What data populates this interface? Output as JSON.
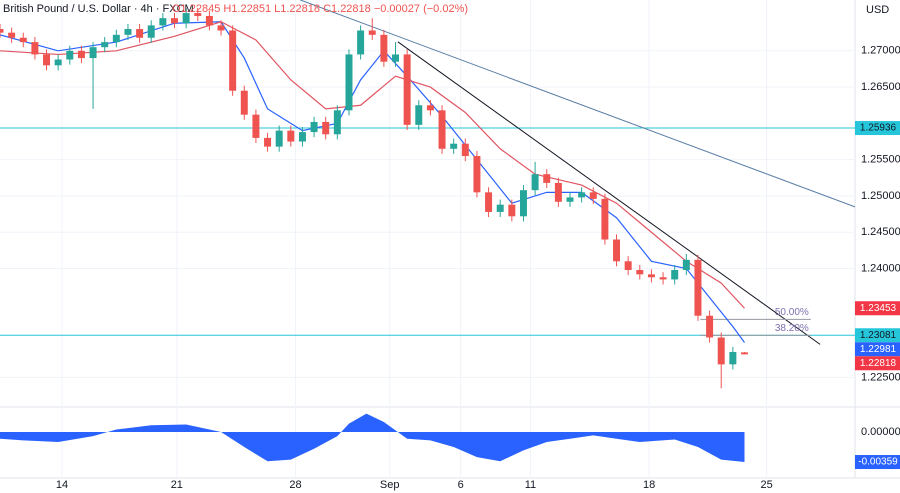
{
  "chart_data": {
    "type": "candlestick",
    "title": "British Pound / U.S. Dollar · 4h · FXCM",
    "header_stats": "O1.22845 H1.22851 L1.22818 C1.22818 −0.00027 (−0.02%)",
    "currency": "USD",
    "up_color": "#26a69a",
    "down_color": "#ef5350",
    "xlim": [
      0,
      73.5
    ],
    "xticks": [
      {
        "value": 5.33,
        "label": "14"
      },
      {
        "value": 15.2,
        "label": "21"
      },
      {
        "value": 25.4,
        "label": "28"
      },
      {
        "value": 33.5,
        "label": "Sep"
      },
      {
        "value": 39.6,
        "label": "6"
      },
      {
        "value": 45.6,
        "label": "11"
      },
      {
        "value": 55.8,
        "label": "18"
      },
      {
        "value": 65.9,
        "label": "25"
      }
    ],
    "ylim": [
      1.2212,
      1.277
    ],
    "yticks": [
      {
        "value": 1.225,
        "label": "1.22500"
      },
      {
        "value": 1.24,
        "label": "1.24000"
      },
      {
        "value": 1.245,
        "label": "1.24500"
      },
      {
        "value": 1.25,
        "label": "1.25000"
      },
      {
        "value": 1.255,
        "label": "1.25500"
      },
      {
        "value": 1.265,
        "label": "1.26500"
      },
      {
        "value": 1.27,
        "label": "1.27000"
      }
    ],
    "x": [
      0,
      1,
      2,
      3,
      4,
      5,
      6,
      7,
      8,
      9,
      10,
      11,
      12,
      13,
      14,
      15,
      16,
      17,
      18,
      19,
      20,
      21,
      22,
      23,
      24,
      25,
      26,
      27,
      28,
      29,
      30,
      31,
      32,
      33,
      34,
      35,
      36,
      37,
      38,
      39,
      40,
      41,
      42,
      43,
      44,
      45,
      46,
      47,
      48,
      49,
      50,
      51,
      52,
      53,
      54,
      55,
      56,
      57,
      58,
      59,
      60,
      61,
      62,
      63,
      64
    ],
    "open": [
      1.273,
      1.2725,
      1.2718,
      1.2712,
      1.2695,
      1.268,
      1.2688,
      1.27,
      1.269,
      1.2705,
      1.2712,
      1.2722,
      1.273,
      1.2718,
      1.2735,
      1.2745,
      1.2738,
      1.2752,
      1.2748,
      1.2735,
      1.2728,
      1.2645,
      1.2612,
      1.258,
      1.2568,
      1.259,
      1.2575,
      1.2588,
      1.2602,
      1.2585,
      1.2618,
      1.2695,
      1.2728,
      1.2722,
      1.2685,
      1.2695,
      1.2598,
      1.2625,
      1.2618,
      1.2565,
      1.2572,
      1.2555,
      1.2505,
      1.2478,
      1.2488,
      1.2472,
      1.2508,
      1.253,
      1.2518,
      1.2492,
      1.2498,
      1.2505,
      1.2496,
      1.244,
      1.241,
      1.2398,
      1.2392,
      1.2388,
      1.2385,
      1.2398,
      1.2412,
      1.2335,
      1.2305,
      1.2268,
      1.22845
    ],
    "high": [
      1.2737,
      1.2732,
      1.2725,
      1.2719,
      1.2702,
      1.2695,
      1.2707,
      1.2707,
      1.2712,
      1.2719,
      1.2729,
      1.2737,
      1.2737,
      1.2742,
      1.2752,
      1.2752,
      1.2759,
      1.2759,
      1.2755,
      1.2742,
      1.2735,
      1.2652,
      1.2619,
      1.2587,
      1.2597,
      1.2597,
      1.2595,
      1.2609,
      1.2609,
      1.2625,
      1.2702,
      1.2735,
      1.2745,
      1.2729,
      1.2712,
      1.2702,
      1.2632,
      1.2632,
      1.2625,
      1.2579,
      1.2579,
      1.2562,
      1.2512,
      1.2495,
      1.2495,
      1.2515,
      1.2547,
      1.2537,
      1.2525,
      1.2505,
      1.2512,
      1.2512,
      1.2503,
      1.2447,
      1.2417,
      1.2405,
      1.2399,
      1.2395,
      1.2405,
      1.242,
      1.2419,
      1.2342,
      1.2312,
      1.2292,
      1.22851
    ],
    "low": [
      1.2718,
      1.2711,
      1.2705,
      1.2688,
      1.2673,
      1.2673,
      1.2681,
      1.2683,
      1.262,
      1.2698,
      1.2705,
      1.2715,
      1.2711,
      1.2711,
      1.2728,
      1.2731,
      1.2731,
      1.2741,
      1.2728,
      1.2721,
      1.2638,
      1.2605,
      1.2573,
      1.2561,
      1.2561,
      1.2568,
      1.2568,
      1.2581,
      1.2578,
      1.2578,
      1.2611,
      1.2688,
      1.2715,
      1.2678,
      1.2678,
      1.2591,
      1.2591,
      1.2611,
      1.2558,
      1.2558,
      1.2548,
      1.2498,
      1.2471,
      1.2471,
      1.2465,
      1.2465,
      1.2501,
      1.2511,
      1.2485,
      1.2485,
      1.2491,
      1.2489,
      1.2433,
      1.2403,
      1.2391,
      1.2385,
      1.2381,
      1.2378,
      1.2378,
      1.2391,
      1.2328,
      1.2298,
      1.2235,
      1.2261,
      1.22818
    ],
    "close": [
      1.2725,
      1.2718,
      1.2712,
      1.2695,
      1.268,
      1.2688,
      1.27,
      1.269,
      1.2705,
      1.2712,
      1.2722,
      1.273,
      1.2718,
      1.2735,
      1.2745,
      1.2738,
      1.2752,
      1.2748,
      1.2735,
      1.2728,
      1.2645,
      1.2612,
      1.258,
      1.2568,
      1.259,
      1.2575,
      1.2588,
      1.2602,
      1.2585,
      1.2618,
      1.2695,
      1.2728,
      1.2722,
      1.2685,
      1.2695,
      1.2598,
      1.2625,
      1.2618,
      1.2565,
      1.2572,
      1.2555,
      1.2505,
      1.2478,
      1.2488,
      1.2472,
      1.2508,
      1.253,
      1.2518,
      1.2492,
      1.2498,
      1.2505,
      1.2496,
      1.244,
      1.241,
      1.2398,
      1.2392,
      1.2388,
      1.2385,
      1.2398,
      1.2412,
      1.2335,
      1.2305,
      1.2268,
      1.2285,
      1.22818
    ],
    "moving_averages": [
      {
        "color": "#2962ff",
        "x": [
          0,
          5,
          10,
          15,
          19,
          21,
          23,
          26,
          29,
          31,
          33,
          35,
          38,
          41,
          44,
          47,
          50,
          53,
          56,
          59,
          61,
          63,
          64
        ],
        "values": [
          1.2722,
          1.27,
          1.2712,
          1.2738,
          1.274,
          1.269,
          1.262,
          1.259,
          1.26,
          1.266,
          1.27,
          1.2665,
          1.261,
          1.255,
          1.249,
          1.2505,
          1.2505,
          1.247,
          1.241,
          1.24,
          1.236,
          1.232,
          1.22981
        ]
      },
      {
        "color": "#e05561",
        "x": [
          0,
          5,
          10,
          15,
          19,
          22,
          25,
          28,
          31,
          34,
          37,
          40,
          43,
          46,
          50,
          53,
          56,
          59,
          62,
          64
        ],
        "values": [
          1.27,
          1.2695,
          1.27,
          1.272,
          1.274,
          1.2715,
          1.266,
          1.262,
          1.2625,
          1.2665,
          1.265,
          1.2615,
          1.2565,
          1.253,
          1.2515,
          1.249,
          1.245,
          1.241,
          1.238,
          1.23453
        ]
      }
    ],
    "horizontal_lines": {
      "color": "#26c6da",
      "values": [
        1.25936,
        1.23081
      ]
    },
    "trend_lines": [
      {
        "color": "#5b7fa6",
        "x": [
          25.8,
          73.5
        ],
        "values": [
          1.27702,
          1.2485
        ]
      },
      {
        "color": "#131722",
        "x": [
          34.2,
          70.5
        ],
        "values": [
          1.27124,
          1.22955
        ]
      }
    ],
    "fib_levels": {
      "color": "#7e6fb0",
      "x": [
        60.2,
        69.7
      ],
      "levels": [
        {
          "label": "50.00%",
          "value": 1.233
        },
        {
          "label": "38.20%",
          "value": 1.2308
        }
      ]
    },
    "oscillator": {
      "color": "#2962ff",
      "ylim": [
        -0.0055,
        0.00287
      ],
      "yticks": [
        {
          "value": 0,
          "label": "0.00000"
        }
      ],
      "x": [
        0,
        2,
        5,
        8,
        10,
        13,
        16,
        19,
        21,
        23,
        25,
        27,
        29,
        30,
        31.5,
        33,
        35,
        37,
        39,
        41,
        43,
        45,
        47,
        49,
        51,
        53,
        55,
        58,
        60,
        62,
        64
      ],
      "values": [
        -0.0008,
        -0.001,
        -0.0012,
        -0.0005,
        0.0003,
        0.0008,
        0.0009,
        0.0,
        -0.0018,
        -0.0035,
        -0.0033,
        -0.002,
        -0.0005,
        0.001,
        0.0022,
        0.0012,
        -0.0008,
        -0.001,
        -0.0018,
        -0.003,
        -0.0035,
        -0.0022,
        -0.0012,
        -0.0008,
        -0.0004,
        -0.0008,
        -0.0012,
        -0.0009,
        -0.0018,
        -0.0033,
        -0.00359
      ]
    }
  }
}
